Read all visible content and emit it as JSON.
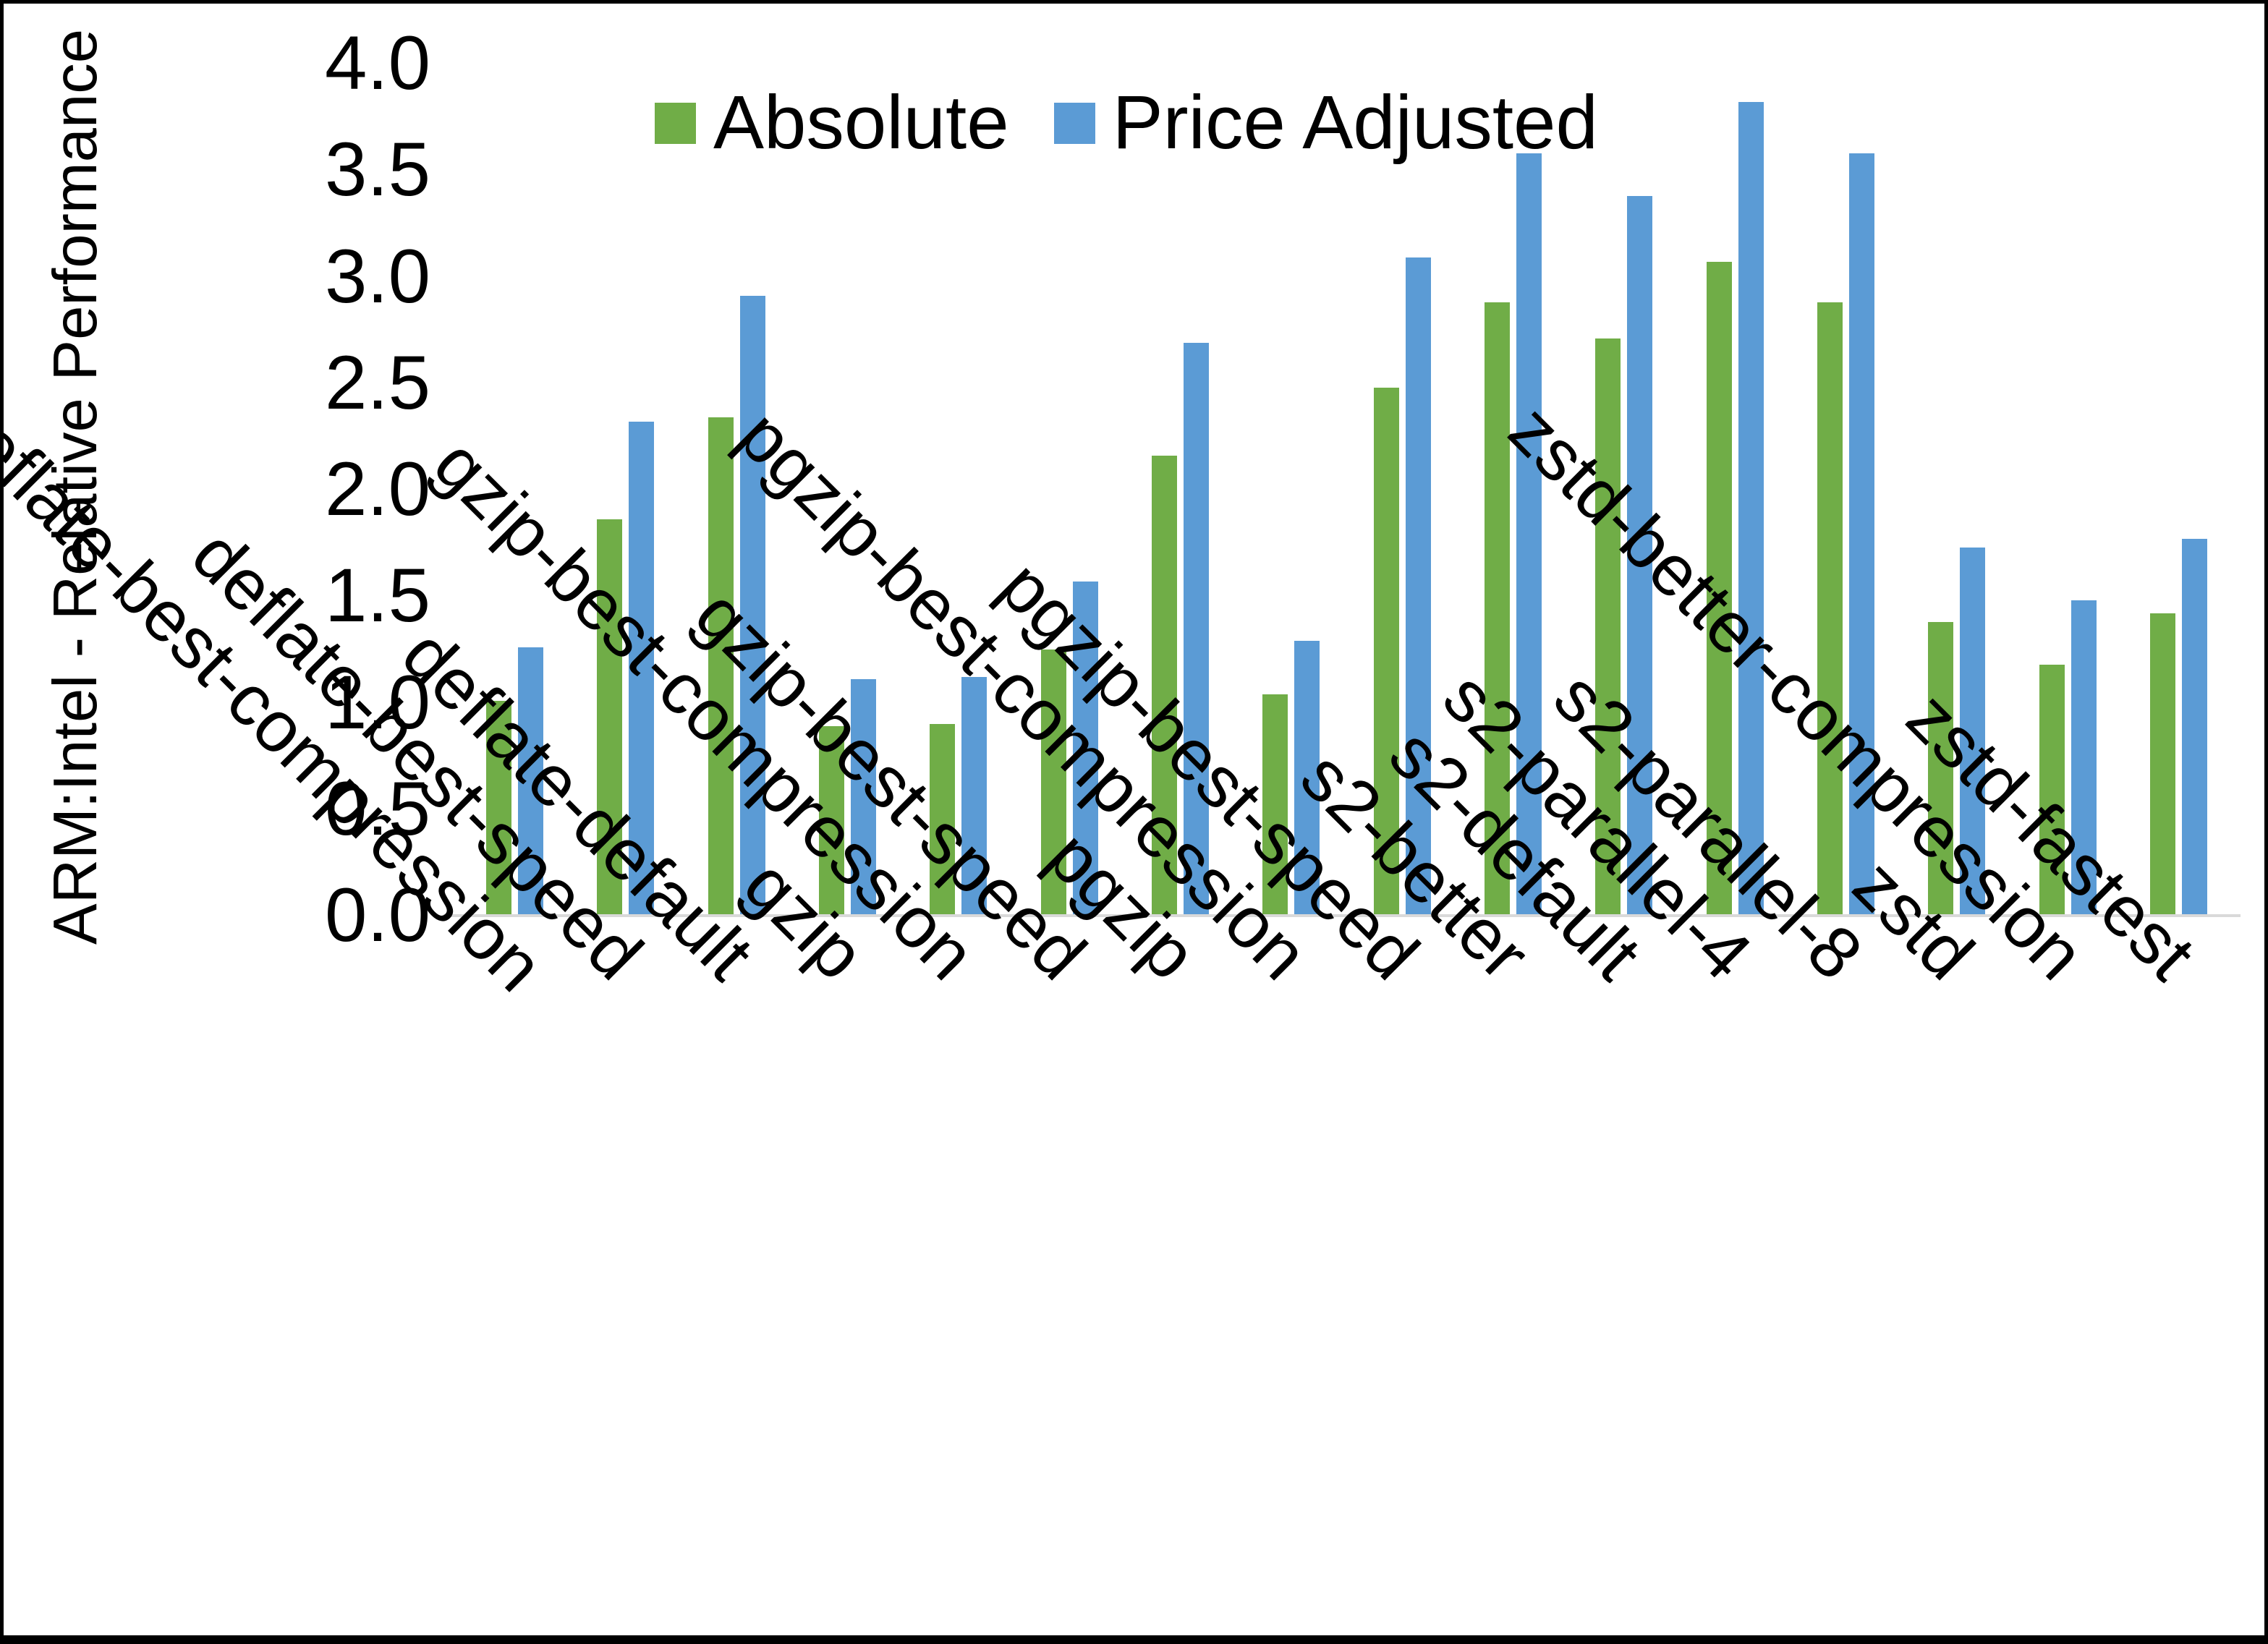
{
  "chart_data": {
    "type": "bar",
    "title": "",
    "xlabel": "",
    "ylabel": "ARM:Intel - Relative Performance",
    "ylim": [
      0,
      4
    ],
    "ytick_step": 0.5,
    "yticks": [
      "4.0",
      "3.5",
      "3.0",
      "2.5",
      "2.0",
      "1.5",
      "1.0",
      "0.5",
      "0.0"
    ],
    "grid": false,
    "legend_position": "top",
    "categories": [
      "deflate-best-compression",
      "deflate-best-speed",
      "deflate-default",
      "gzip",
      "gzip-best-compression",
      "gzip-best-speed",
      "pgzip",
      "pgzip-best-compression",
      "pgzip-best-speed",
      "s2-better",
      "s2-default",
      "s2-parallel-4",
      "s2-parallel-8",
      "zstd",
      "zstd-better-compression",
      "zstd-fastest"
    ],
    "series": [
      {
        "name": "Absolute",
        "color": "#70AD47",
        "values": [
          1.01,
          1.86,
          2.34,
          0.89,
          0.9,
          1.25,
          2.16,
          1.04,
          2.48,
          2.88,
          2.71,
          3.07,
          2.88,
          1.38,
          1.18,
          1.42
        ]
      },
      {
        "name": "Price Adjusted",
        "color": "#5B9BD5",
        "values": [
          1.26,
          2.32,
          2.91,
          1.11,
          1.12,
          1.57,
          2.69,
          1.29,
          3.09,
          3.58,
          3.38,
          3.82,
          3.58,
          1.73,
          1.48,
          1.77
        ]
      }
    ]
  },
  "colors": {
    "background": "#FFFFFF",
    "frame_border": "#000000",
    "axis_line": "#D9D9D9",
    "text": "#000000"
  }
}
